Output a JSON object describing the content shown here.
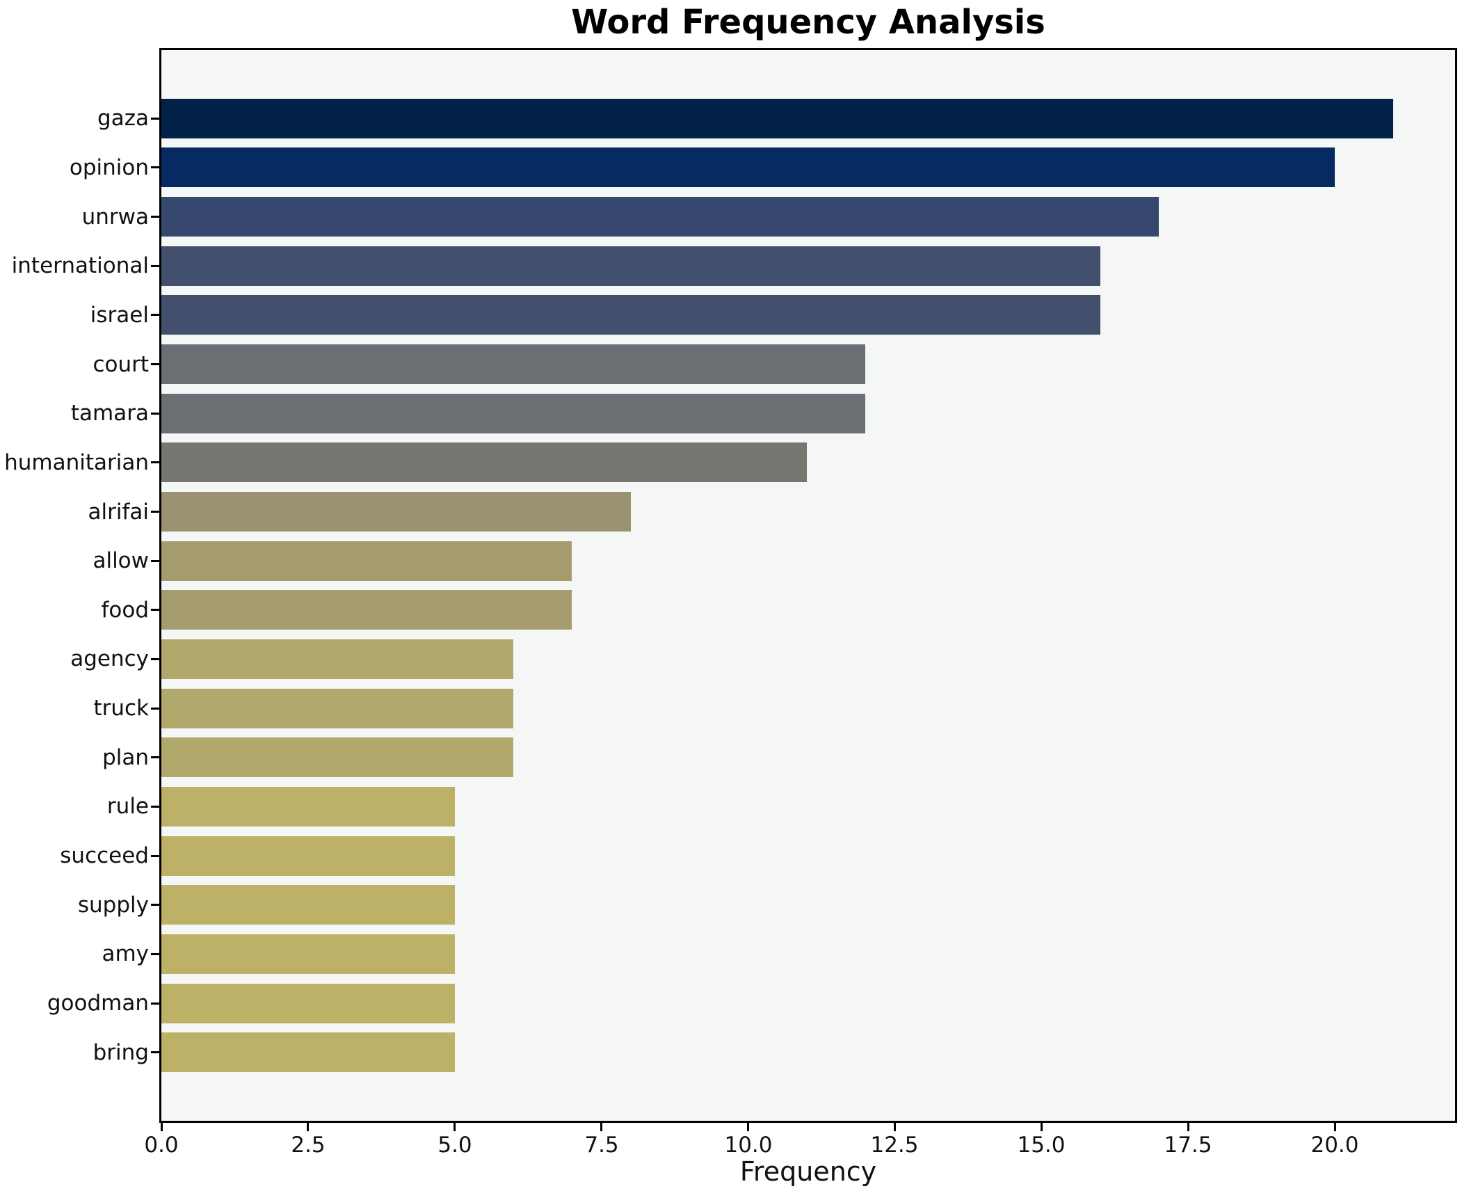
{
  "figure": {
    "background": "#ffffff",
    "plot_background": "#f5f6f6",
    "spine_color": "#000000",
    "text_color": "#111111"
  },
  "chart_data": {
    "type": "bar",
    "orientation": "horizontal",
    "title": "Word Frequency Analysis",
    "xlabel": "Frequency",
    "ylabel": "",
    "categories": [
      "gaza",
      "opinion",
      "unrwa",
      "international",
      "israel",
      "court",
      "tamara",
      "humanitarian",
      "alrifai",
      "allow",
      "food",
      "agency",
      "truck",
      "plan",
      "rule",
      "succeed",
      "supply",
      "amy",
      "goodman",
      "bring"
    ],
    "values": [
      21,
      20,
      17,
      16,
      16,
      12,
      12,
      11,
      8,
      7,
      7,
      6,
      6,
      6,
      5,
      5,
      5,
      5,
      5,
      5
    ],
    "bar_colors": [
      "#032249",
      "#082a62",
      "#36486f",
      "#424f6d",
      "#424f6d",
      "#6b6e73",
      "#6b6e73",
      "#777671",
      "#9a9271",
      "#a59c6e",
      "#a59c6e",
      "#b1a86b",
      "#b1a86b",
      "#b1a86b",
      "#bdb168",
      "#bdb168",
      "#bdb168",
      "#bdb168",
      "#bdb168",
      "#bdb168"
    ],
    "xlim": [
      0,
      22.05
    ],
    "xticks": [
      0,
      2.5,
      5,
      7.5,
      10,
      12.5,
      15,
      17.5,
      20
    ],
    "xtick_labels": [
      "0.0",
      "2.5",
      "5.0",
      "7.5",
      "10.0",
      "12.5",
      "15.0",
      "17.5",
      "20.0"
    ],
    "grid": false,
    "legend": null,
    "bar_height_fraction": 0.8
  }
}
